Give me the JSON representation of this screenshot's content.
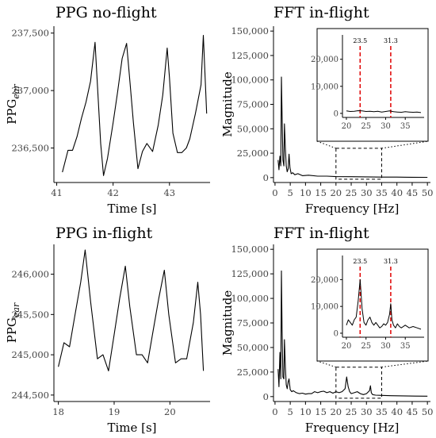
{
  "chart_data": [
    {
      "id": "ppg-noflight",
      "type": "line",
      "title": "PPG no-flight",
      "xlabel": "Time [s]",
      "ylabel": "PPG",
      "ylabel_sub": "ear",
      "xlim": [
        40.95,
        43.72
      ],
      "ylim": [
        236200,
        237560
      ],
      "xticks": [
        41,
        42,
        43
      ],
      "yticks": [
        236500,
        237000,
        237500
      ],
      "yticklabels": [
        "236,500",
        "237,000",
        "237,500"
      ],
      "series": [
        {
          "x": [
            41.1,
            41.2,
            41.28,
            41.36,
            41.44,
            41.52,
            41.6,
            41.68,
            41.78,
            41.83,
            41.9,
            42.0,
            42.08,
            42.16,
            42.24,
            42.3,
            42.36,
            42.44,
            42.52,
            42.6,
            42.7,
            42.8,
            42.88,
            42.96,
            43.0,
            43.06,
            43.14,
            43.22,
            43.3,
            43.36,
            43.46,
            43.56,
            43.6,
            43.66
          ],
          "y": [
            236290,
            236480,
            236480,
            236600,
            236760,
            236900,
            237080,
            237420,
            236540,
            236260,
            236410,
            236720,
            236990,
            237280,
            237410,
            237070,
            236720,
            236320,
            236470,
            236540,
            236470,
            236700,
            236960,
            237370,
            237110,
            236630,
            236460,
            236460,
            236500,
            236580,
            236800,
            237050,
            237480,
            236800
          ]
        }
      ]
    },
    {
      "id": "fft-top",
      "type": "line",
      "title": "FFT in-flight",
      "xlabel": "Frequency [Hz]",
      "ylabel": "Magnitude",
      "xlim": [
        -0.5,
        51
      ],
      "ylim": [
        -5000,
        155000
      ],
      "xticks": [
        0,
        5,
        10,
        15,
        20,
        25,
        30,
        35,
        40,
        45,
        50
      ],
      "yticks": [
        0,
        25000,
        50000,
        75000,
        100000,
        125000,
        150000
      ],
      "yticklabels": [
        "0",
        "25,000",
        "50,000",
        "75,000",
        "100,000",
        "125,000",
        "150,000"
      ],
      "series": [
        {
          "x": [
            1.0,
            1.3,
            1.6,
            1.9,
            2.1,
            2.3,
            2.6,
            2.9,
            3.1,
            3.4,
            3.7,
            4.0,
            4.3,
            4.6,
            4.9,
            5.3,
            5.8,
            6.5,
            7.5,
            9,
            11,
            14,
            17,
            20,
            25,
            30,
            35,
            40,
            45,
            50
          ],
          "y": [
            18000,
            8000,
            22000,
            12000,
            103000,
            65000,
            18000,
            12000,
            55000,
            30000,
            12000,
            6000,
            9000,
            24000,
            10000,
            4000,
            5000,
            3000,
            4000,
            2000,
            2500,
            1500,
            1500,
            1000,
            900,
            800,
            500,
            500,
            400,
            300
          ]
        }
      ],
      "zoom_box": {
        "x": [
          20,
          35
        ],
        "y": [
          0,
          30000
        ]
      },
      "inset": {
        "xlim": [
          19,
          39.8
        ],
        "ylim": [
          -1500,
          29000
        ],
        "xticks": [
          20,
          25,
          30,
          35
        ],
        "yticks": [
          0,
          10000,
          20000
        ],
        "yticklabels": [
          "0",
          "10,000",
          "20,000"
        ],
        "vlines": [
          {
            "x": 23.5,
            "label": "23.5"
          },
          {
            "x": 31.3,
            "label": "31.3"
          }
        ],
        "series": [
          {
            "x": [
              20,
              21,
              22,
              23,
              24,
              25,
              26,
              27,
              28,
              29,
              30,
              31,
              32,
              33,
              34,
              35,
              36,
              37,
              38,
              39
            ],
            "y": [
              900,
              700,
              800,
              1000,
              900,
              700,
              800,
              600,
              800,
              500,
              700,
              900,
              600,
              500,
              400,
              600,
              500,
              400,
              500,
              300
            ]
          }
        ]
      }
    },
    {
      "id": "ppg-inflight",
      "type": "line",
      "title": "PPG in-flight",
      "xlabel": "Time [s]",
      "ylabel": "PPG",
      "ylabel_sub": "ear",
      "xlim": [
        17.92,
        20.72
      ],
      "ylim": [
        244420,
        246370
      ],
      "xticks": [
        18,
        19,
        20
      ],
      "yticks": [
        244500,
        245000,
        245500,
        246000
      ],
      "yticklabels": [
        "244,500",
        "245,000",
        "245,500",
        "246,000"
      ],
      "series": [
        {
          "x": [
            18.0,
            18.1,
            18.2,
            18.3,
            18.4,
            18.48,
            18.58,
            18.7,
            18.8,
            18.9,
            19.0,
            19.1,
            19.2,
            19.28,
            19.4,
            19.5,
            19.6,
            19.7,
            19.8,
            19.9,
            19.98,
            20.1,
            20.2,
            20.3,
            20.42,
            20.5,
            20.55,
            20.6
          ],
          "y": [
            244850,
            245150,
            245100,
            245500,
            245900,
            246300,
            245650,
            244950,
            245000,
            244800,
            245250,
            245700,
            246100,
            245600,
            245000,
            245000,
            244900,
            245300,
            245700,
            246050,
            245500,
            244900,
            244950,
            244950,
            245400,
            245900,
            245500,
            244800
          ]
        }
      ]
    },
    {
      "id": "fft-bottom",
      "type": "line",
      "title": "FFT in-flight",
      "xlabel": "Frequency [Hz]",
      "ylabel": "Magnitude",
      "xlim": [
        -0.5,
        51
      ],
      "ylim": [
        -5000,
        155000
      ],
      "xticks": [
        0,
        5,
        10,
        15,
        20,
        25,
        30,
        35,
        40,
        45,
        50
      ],
      "yticks": [
        0,
        25000,
        50000,
        75000,
        100000,
        125000,
        150000
      ],
      "yticklabels": [
        "0",
        "25,000",
        "50,000",
        "75,000",
        "100,000",
        "125,000",
        "150,000"
      ],
      "series": [
        {
          "x": [
            1.0,
            1.3,
            1.6,
            1.9,
            2.1,
            2.3,
            2.6,
            2.9,
            3.1,
            3.4,
            3.7,
            4.0,
            4.3,
            4.6,
            5.0,
            5.5,
            6,
            7,
            8,
            9,
            10,
            11,
            12,
            13,
            14,
            15,
            16,
            17,
            18,
            19,
            20,
            21,
            22,
            23.0,
            23.5,
            24.0,
            24.5,
            25,
            26,
            27,
            28,
            29,
            30,
            31.0,
            31.3,
            31.6,
            32,
            33,
            35,
            38,
            42,
            46,
            50
          ],
          "y": [
            28000,
            10000,
            45000,
            18000,
            128000,
            70000,
            20000,
            18000,
            58000,
            30000,
            12000,
            8000,
            15000,
            18000,
            7000,
            5000,
            6000,
            4000,
            3000,
            3500,
            2500,
            3000,
            3000,
            5000,
            4000,
            5000,
            5500,
            4000,
            5000,
            3500,
            5000,
            4000,
            5000,
            8000,
            20000,
            10000,
            5000,
            3000,
            4000,
            5000,
            3000,
            2000,
            3000,
            6000,
            11000,
            4000,
            2000,
            1500,
            1200,
            900,
            700,
            500,
            400
          ]
        }
      ],
      "zoom_box": {
        "x": [
          20,
          35
        ],
        "y": [
          0,
          30000
        ]
      },
      "inset": {
        "xlim": [
          19,
          39.8
        ],
        "ylim": [
          -1500,
          29000
        ],
        "xticks": [
          20,
          25,
          30,
          35
        ],
        "yticks": [
          0,
          10000,
          20000
        ],
        "yticklabels": [
          "0",
          "10,000",
          "20,000"
        ],
        "vlines": [
          {
            "x": 23.5,
            "label": "23.5"
          },
          {
            "x": 31.3,
            "label": "31.3"
          }
        ],
        "series": [
          {
            "x": [
              20,
              20.5,
              21,
              21.5,
              22,
              22.5,
              23.0,
              23.5,
              24.0,
              24.5,
              25,
              25.5,
              26,
              26.5,
              27,
              27.5,
              28,
              28.5,
              29,
              29.5,
              30,
              30.5,
              31.0,
              31.3,
              31.6,
              32,
              32.5,
              33,
              33.5,
              34,
              35,
              36,
              37,
              38,
              39
            ],
            "y": [
              3000,
              5000,
              4000,
              3000,
              5000,
              6000,
              12000,
              20000,
              9000,
              4000,
              3000,
              5000,
              6000,
              4000,
              3000,
              4000,
              3000,
              2000,
              2500,
              3500,
              3000,
              4000,
              7000,
              11000,
              5000,
              3000,
              2000,
              3500,
              2500,
              2000,
              3000,
              2000,
              2500,
              2000,
              1500
            ]
          }
        ]
      }
    }
  ]
}
